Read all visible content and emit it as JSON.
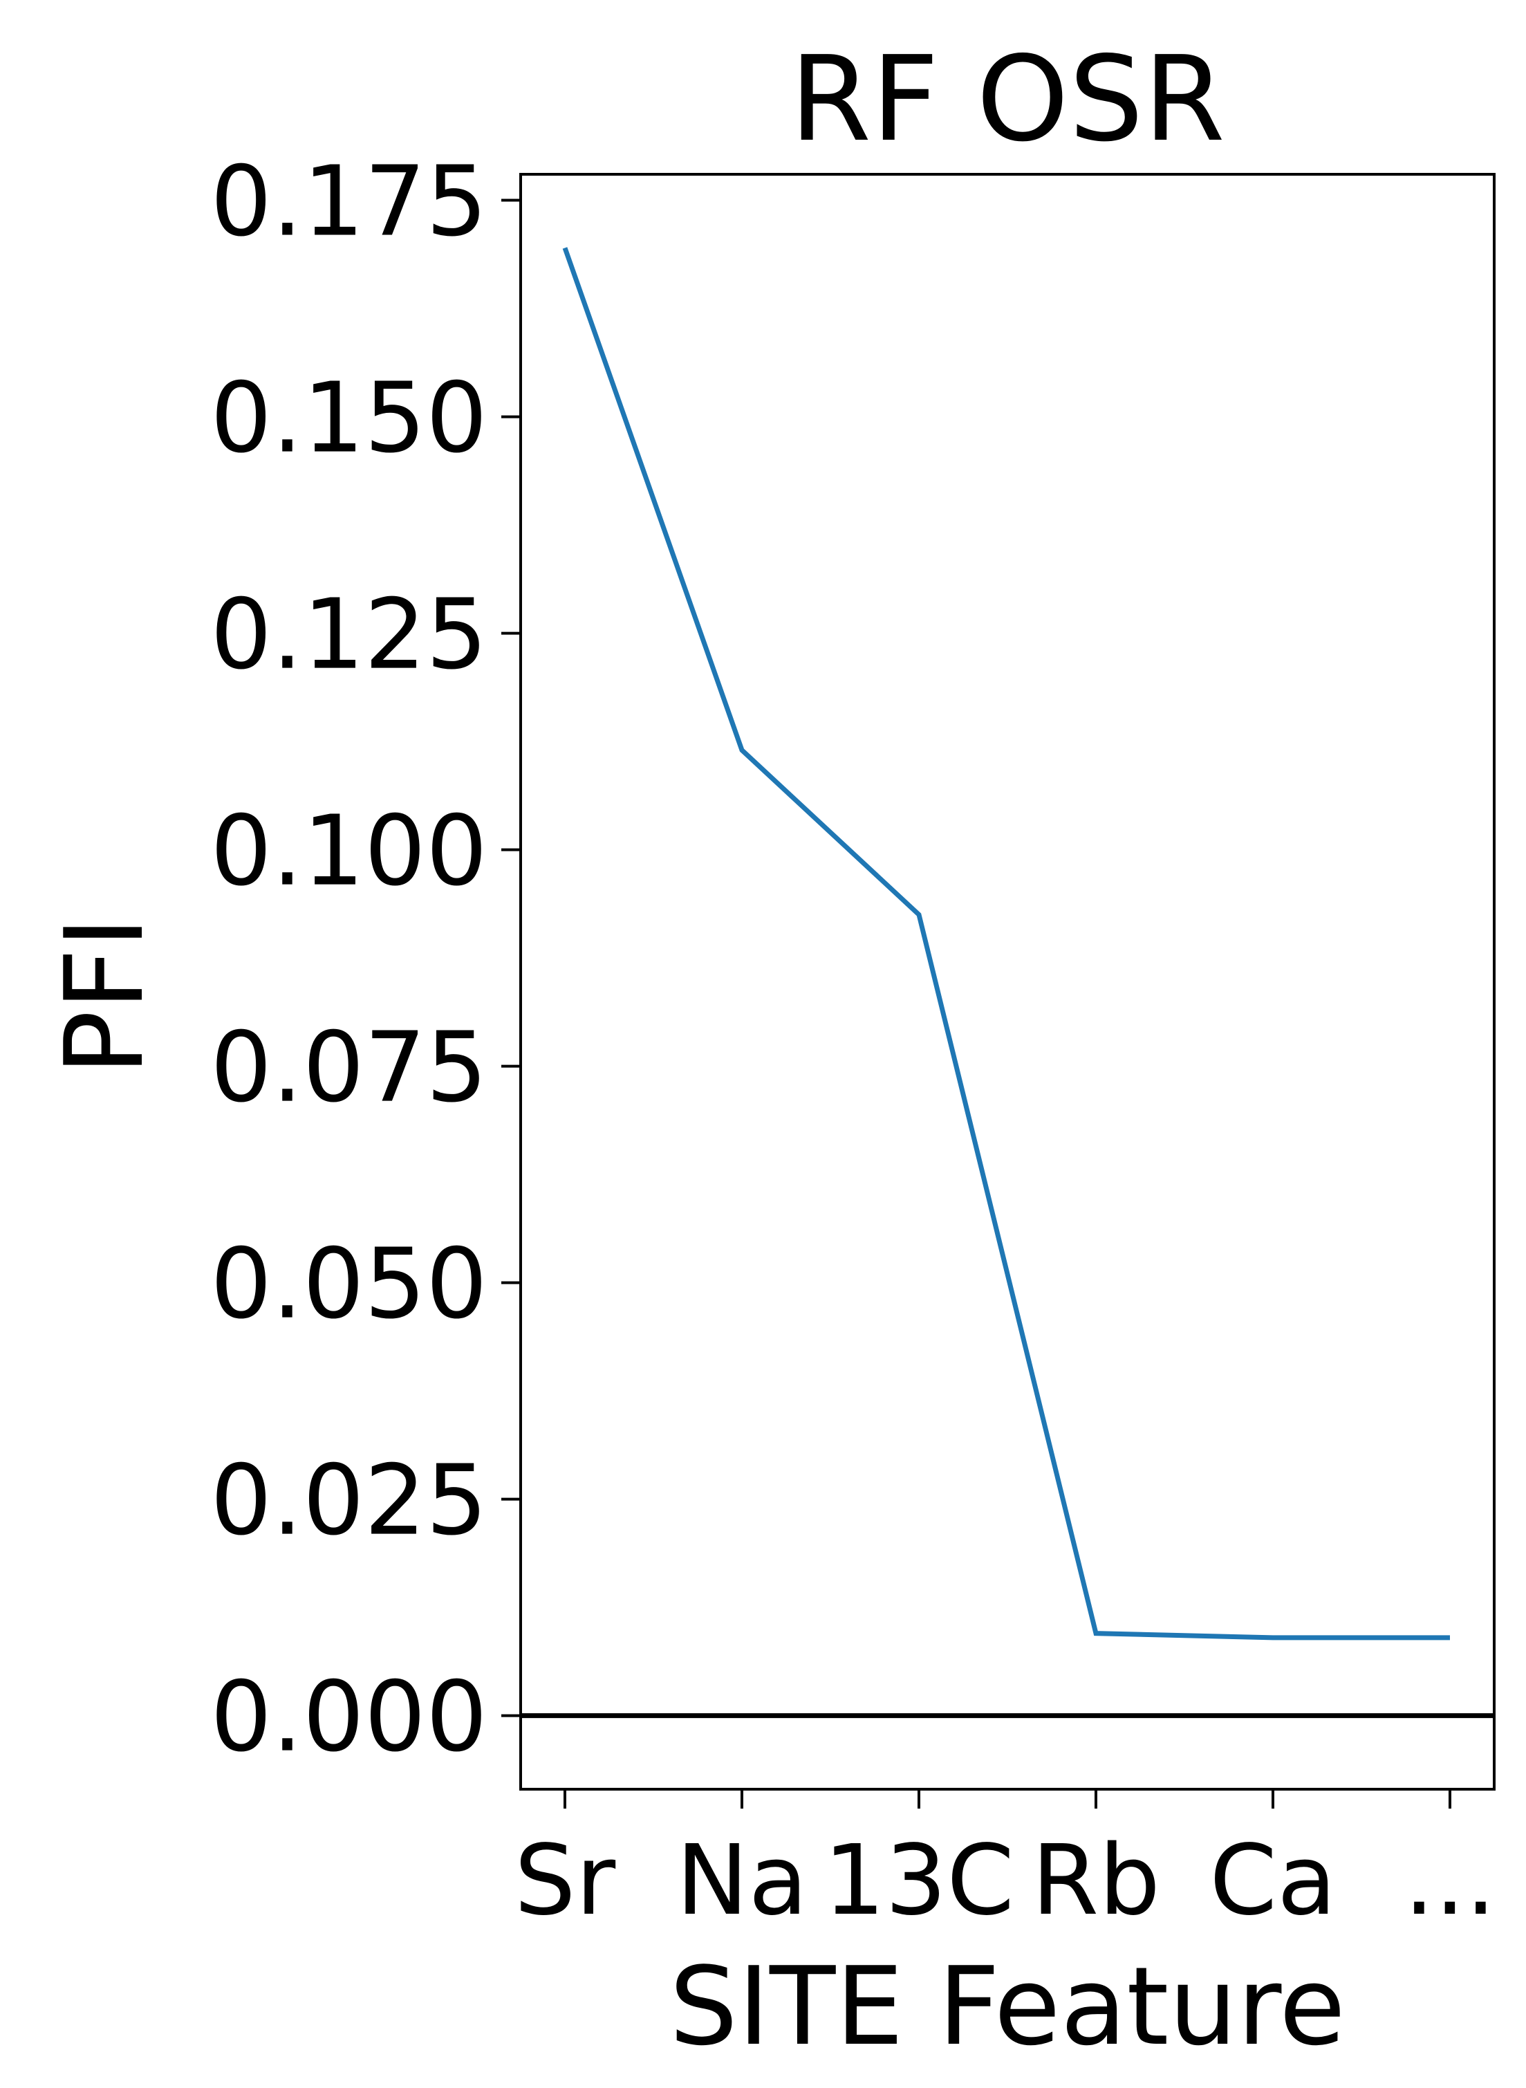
{
  "chart_data": {
    "type": "line",
    "title": "RF OSR",
    "xlabel": "SITE Feature",
    "ylabel": "PFI",
    "categories": [
      "Sr",
      "Na",
      "13C",
      "Rb",
      "Ca",
      "..."
    ],
    "series": [
      {
        "values": [
          0.1695,
          0.1115,
          0.0925,
          0.0095,
          0.009,
          0.009
        ]
      }
    ],
    "reference_line": {
      "y": 0.0
    },
    "ylim": [
      -0.0085,
      0.178
    ],
    "yticks": [
      0.0,
      0.025,
      0.05,
      0.075,
      0.1,
      0.125,
      0.15,
      0.175
    ],
    "ytick_labels": [
      "0.000",
      "0.025",
      "0.050",
      "0.075",
      "0.100",
      "0.125",
      "0.150",
      "0.175"
    ],
    "grid": false,
    "legend": "none",
    "colors": {
      "line": "#1f77b4",
      "reference": "#000000",
      "axes": "#000000"
    }
  }
}
